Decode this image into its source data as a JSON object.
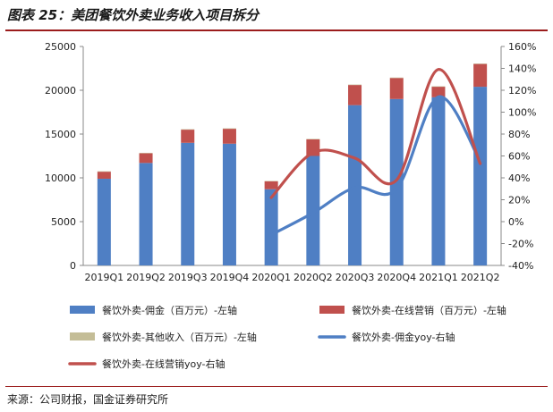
{
  "header": {
    "title": "图表 25：美团餐饮外卖业务收入项目拆分"
  },
  "footer": {
    "source": "来源：公司财报，国金证券研究所"
  },
  "chart_data": {
    "type": "bar",
    "stacked": true,
    "title": "图表 25：美团餐饮外卖业务收入项目拆分",
    "categories": [
      "2019Q1",
      "2019Q2",
      "2019Q3",
      "2019Q4",
      "2020Q1",
      "2020Q2",
      "2020Q3",
      "2020Q4",
      "2021Q1",
      "2021Q2"
    ],
    "y_left": {
      "ylim": [
        0,
        25000
      ],
      "ticks": [
        "0",
        "5000",
        "10000",
        "15000",
        "20000",
        "25000"
      ]
    },
    "y_right": {
      "ylim": [
        -40,
        160
      ],
      "ticks": [
        "-40%",
        "-20%",
        "0%",
        "20%",
        "40%",
        "60%",
        "80%",
        "100%",
        "120%",
        "140%",
        "160%"
      ]
    },
    "grid": false,
    "legend_position": "bottom",
    "series": [
      {
        "name": "餐饮外卖-佣金（百万元）-左轴",
        "type": "bar",
        "axis": "left",
        "color": "#4f7fc4",
        "values": [
          9900,
          11700,
          14000,
          13900,
          8700,
          12500,
          18300,
          19000,
          19200,
          20400
        ]
      },
      {
        "name": "餐饮外卖-在线营销（百万元）-左轴",
        "type": "bar",
        "axis": "left",
        "color": "#c0504d",
        "values": [
          800,
          1100,
          1500,
          1700,
          900,
          1900,
          2300,
          2400,
          1200,
          2600
        ]
      },
      {
        "name": "餐饮外卖-其他收入（百万元）-左轴",
        "type": "bar",
        "axis": "left",
        "color": "#c4bd97",
        "values": [
          50,
          50,
          50,
          50,
          50,
          50,
          50,
          50,
          50,
          50
        ]
      },
      {
        "name": "餐饮外卖-佣金yoy-右轴",
        "type": "line",
        "axis": "right",
        "color": "#4f7fc4",
        "x": [
          "2020Q1",
          "2020Q2",
          "2020Q3",
          "2020Q4",
          "2021Q1",
          "2021Q2"
        ],
        "values": [
          -12,
          8,
          31,
          30,
          114,
          55
        ]
      },
      {
        "name": "餐饮外卖-在线营销yoy-右轴",
        "type": "line",
        "axis": "right",
        "color": "#c0504d",
        "x": [
          "2020Q1",
          "2020Q2",
          "2020Q3",
          "2020Q4",
          "2021Q1",
          "2021Q2"
        ],
        "values": [
          22,
          63,
          58,
          38,
          139,
          53
        ]
      }
    ]
  }
}
